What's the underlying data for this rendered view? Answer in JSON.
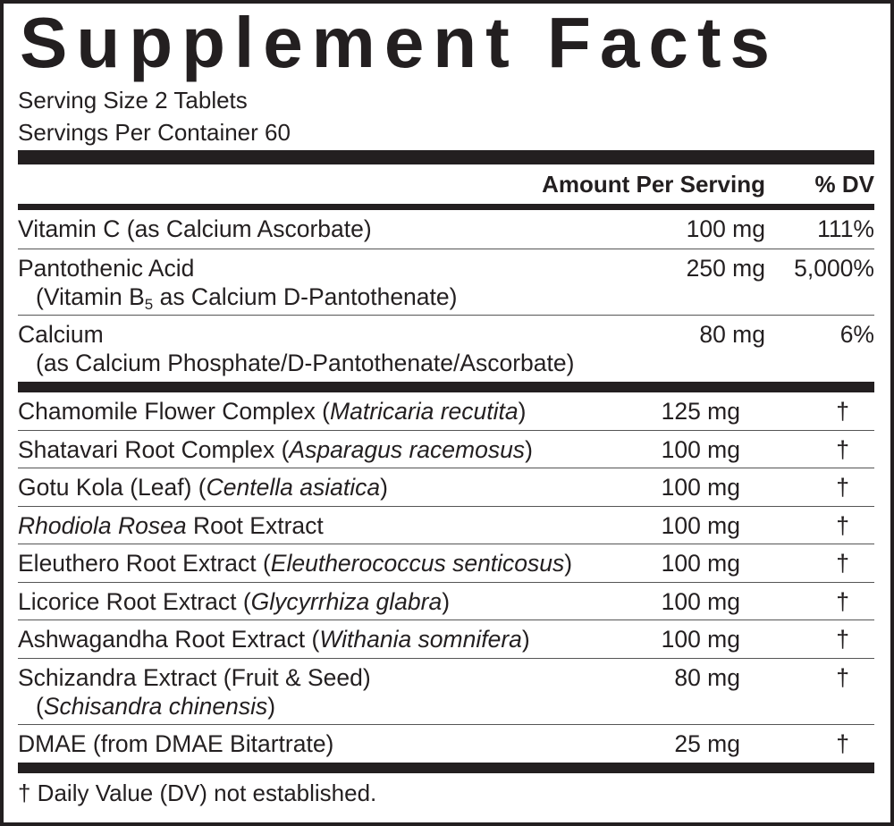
{
  "title": "Supplement Facts",
  "serving_size": "Serving Size 2 Tablets",
  "servings_per_container": "Servings Per Container 60",
  "header": {
    "amount": "Amount Per Serving",
    "dv": "% DV"
  },
  "vitamins": [
    {
      "name": [
        {
          "t": "Vitamin C (as Calcium Ascorbate)"
        }
      ],
      "amount": "100 mg",
      "dv": "111%"
    },
    {
      "name": [
        {
          "t": "Pantothenic Acid"
        }
      ],
      "sub": [
        {
          "t": "(Vitamin B"
        },
        {
          "t": "5",
          "sub": true
        },
        {
          "t": " as Calcium D-Pantothenate)"
        }
      ],
      "amount": "250 mg",
      "dv": "5,000%"
    },
    {
      "name": [
        {
          "t": "Calcium"
        }
      ],
      "sub": [
        {
          "t": "(as Calcium Phosphate/D-Pantothenate/Ascorbate)"
        }
      ],
      "amount": "80 mg",
      "dv": "6%"
    }
  ],
  "herbs": [
    {
      "name": [
        {
          "t": "Chamomile Flower Complex ("
        },
        {
          "t": "Matricaria recutita",
          "i": true
        },
        {
          "t": ")"
        }
      ],
      "amount": "125 mg",
      "dv": "†"
    },
    {
      "name": [
        {
          "t": "Shatavari Root Complex ("
        },
        {
          "t": "Asparagus racemosus",
          "i": true
        },
        {
          "t": ")"
        }
      ],
      "amount": "100 mg",
      "dv": "†"
    },
    {
      "name": [
        {
          "t": "Gotu Kola (Leaf) ("
        },
        {
          "t": "Centella asiatica",
          "i": true
        },
        {
          "t": ")"
        }
      ],
      "amount": "100 mg",
      "dv": "†"
    },
    {
      "name": [
        {
          "t": "Rhodiola Rosea",
          "i": true
        },
        {
          "t": " Root Extract"
        }
      ],
      "amount": "100 mg",
      "dv": "†"
    },
    {
      "name": [
        {
          "t": "Eleuthero Root Extract ("
        },
        {
          "t": "Eleutherococcus senticosus",
          "i": true
        },
        {
          "t": ")"
        }
      ],
      "amount": "100 mg",
      "dv": "†"
    },
    {
      "name": [
        {
          "t": "Licorice Root Extract ("
        },
        {
          "t": "Glycyrrhiza glabra",
          "i": true
        },
        {
          "t": ")"
        }
      ],
      "amount": "100 mg",
      "dv": "†"
    },
    {
      "name": [
        {
          "t": "Ashwagandha Root Extract ("
        },
        {
          "t": "Withania somnifera",
          "i": true
        },
        {
          "t": ")"
        }
      ],
      "amount": "100 mg",
      "dv": "†"
    },
    {
      "name": [
        {
          "t": "Schizandra Extract (Fruit & Seed)"
        }
      ],
      "sub": [
        {
          "t": "("
        },
        {
          "t": "Schisandra chinensis",
          "i": true
        },
        {
          "t": ")"
        }
      ],
      "amount": "80 mg",
      "dv": "†"
    },
    {
      "name": [
        {
          "t": "DMAE (from DMAE Bitartrate)"
        }
      ],
      "amount": "25 mg",
      "dv": "†"
    }
  ],
  "footnote": "† Daily Value (DV) not established."
}
